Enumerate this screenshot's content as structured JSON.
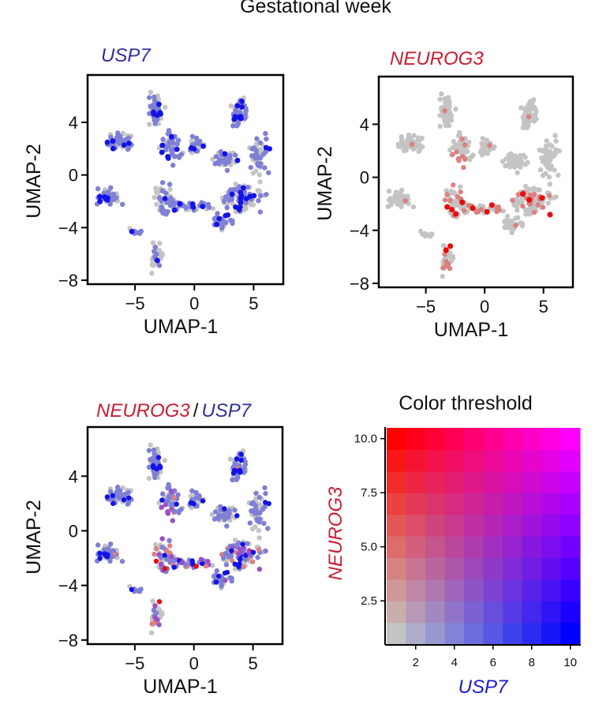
{
  "header": {
    "title": "Gestational week"
  },
  "colors": {
    "gray": "#c4c4c4",
    "usp7_low": "#7f7fd6",
    "usp7_high": "#1212e6",
    "neurog3_low": "#dc8080",
    "neurog3_high": "#e60d0d",
    "usp7_title": "#2e2e9a",
    "neurog3_title": "#c81e32"
  },
  "chart_data": [
    {
      "type": "scatter",
      "title": "USP7",
      "xlabel": "UMAP-1",
      "ylabel": "UMAP-2",
      "xlim": [
        -9,
        7.5
      ],
      "ylim": [
        -8.3,
        7.6
      ],
      "xticks": [
        "−5",
        "0",
        "5"
      ],
      "yticks": [
        "4",
        "0",
        "−4",
        "−8"
      ]
    },
    {
      "type": "scatter",
      "title": "NEUROG3",
      "xlabel": "UMAP-1",
      "ylabel": "UMAP-2",
      "xlim": [
        -9,
        7.5
      ],
      "ylim": [
        -8.3,
        7.6
      ],
      "xticks": [
        "−5",
        "0",
        "5"
      ],
      "yticks": [
        "4",
        "0",
        "−4",
        "−8"
      ]
    },
    {
      "type": "scatter",
      "title_parts": [
        "NEUROG3",
        "/",
        "USP7"
      ],
      "xlabel": "UMAP-1",
      "ylabel": "UMAP-2",
      "xlim": [
        -9,
        7.5
      ],
      "ylim": [
        -8.3,
        7.6
      ],
      "xticks": [
        "−5",
        "0",
        "5"
      ],
      "yticks": [
        "4",
        "0",
        "−4",
        "−8"
      ]
    },
    {
      "type": "heatmap",
      "title": "Color threshold",
      "xlabel": "USP7",
      "ylabel": "NEUROG3",
      "xlim": [
        0.5,
        10.5
      ],
      "ylim": [
        0.5,
        10.5
      ],
      "grid_size": 10,
      "xticks": [
        "2",
        "4",
        "6",
        "8",
        "10"
      ],
      "yticks": [
        "2.5",
        "5.0",
        "7.5",
        "10.0"
      ]
    }
  ]
}
